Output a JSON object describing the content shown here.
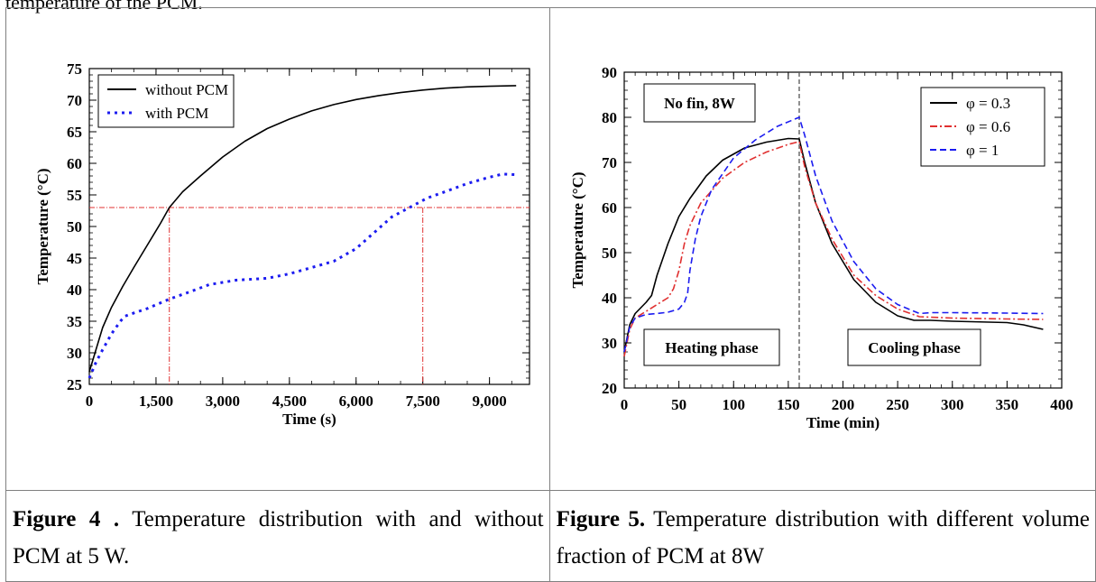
{
  "page": {
    "top_text": "temperature of the PCM."
  },
  "captions": [
    {
      "label": "Figure 4 .",
      "text": "Temperature distribution with and without PCM at 5 W."
    },
    {
      "label": "Figure 5.",
      "text": "Temperature distribution with different volume fraction of  PCM at 8W"
    }
  ],
  "chart_data": [
    {
      "type": "line",
      "xlabel": "Time (s)",
      "ylabel": "Temperature (°C)",
      "xlim": [
        0,
        9900
      ],
      "ylim": [
        25,
        75
      ],
      "xticks": [
        0,
        1500,
        3000,
        4500,
        6000,
        7500,
        9000
      ],
      "xtick_labels": [
        "0",
        "1,500",
        "3,000",
        "4,500",
        "6,000",
        "7,500",
        "9,000"
      ],
      "yticks": [
        25,
        30,
        35,
        40,
        45,
        50,
        55,
        60,
        65,
        70,
        75
      ],
      "ytick_labels": [
        "25",
        "30",
        "35",
        "40",
        "45",
        "50",
        "55",
        "60",
        "65",
        "70",
        "75"
      ],
      "legend_position": "top-left",
      "series": [
        {
          "name": "without PCM",
          "color": "#000000",
          "style": "solid",
          "x": [
            0,
            150,
            300,
            500,
            750,
            1000,
            1300,
            1600,
            1800,
            2100,
            2500,
            3000,
            3500,
            4000,
            4500,
            5000,
            5500,
            6000,
            6500,
            7000,
            7500,
            8000,
            8500,
            9000,
            9600
          ],
          "y": [
            27,
            30.5,
            34,
            37.2,
            40.5,
            43.5,
            47,
            50.5,
            53,
            55.5,
            58,
            61,
            63.5,
            65.5,
            67,
            68.3,
            69.3,
            70.1,
            70.7,
            71.2,
            71.6,
            71.9,
            72.1,
            72.2,
            72.3
          ]
        },
        {
          "name": "with PCM",
          "color": "#1c1cf0",
          "style": "dotted",
          "x": [
            0,
            150,
            300,
            500,
            700,
            800,
            1000,
            1300,
            1800,
            2200,
            2700,
            3300,
            4000,
            4500,
            5000,
            5500,
            6000,
            6400,
            6800,
            7200,
            7600,
            8000,
            8500,
            9000,
            9300,
            9600
          ],
          "y": [
            26,
            28.5,
            30.5,
            33,
            35,
            35.8,
            36.3,
            37,
            38.5,
            39.5,
            40.8,
            41.5,
            41.8,
            42.5,
            43.5,
            44.5,
            46.5,
            49,
            51.5,
            53,
            54.5,
            55.5,
            56.8,
            57.8,
            58.3,
            58.2
          ]
        }
      ],
      "reference_lines": {
        "color": "#e03030",
        "style": "dash-dot",
        "y": 53,
        "x": [
          1800,
          7500
        ]
      }
    },
    {
      "type": "line",
      "xlabel": "Time (min)",
      "ylabel": "Temperature (°C)",
      "xlim": [
        0,
        400
      ],
      "ylim": [
        20,
        90
      ],
      "xticks": [
        0,
        50,
        100,
        150,
        200,
        250,
        300,
        350,
        400
      ],
      "xtick_labels": [
        "0",
        "50",
        "100",
        "150",
        "200",
        "250",
        "300",
        "350",
        "400"
      ],
      "yticks": [
        20,
        30,
        40,
        50,
        60,
        70,
        80,
        90
      ],
      "ytick_labels": [
        "20",
        "30",
        "40",
        "50",
        "60",
        "70",
        "80",
        "90"
      ],
      "legend_position": "top-right",
      "annotations": [
        "No fin, 8W",
        "Heating phase",
        "Cooling phase"
      ],
      "phase_divider_x": 160,
      "series": [
        {
          "name": "φ = 0.3",
          "color": "#000000",
          "style": "solid",
          "x": [
            0,
            5,
            10,
            20,
            25,
            30,
            40,
            50,
            60,
            75,
            90,
            110,
            130,
            150,
            160,
            165,
            175,
            190,
            210,
            230,
            250,
            265,
            280,
            300,
            350,
            365,
            383
          ],
          "y": [
            28,
            34,
            36.5,
            39,
            40.5,
            45,
            52,
            58,
            62,
            67,
            70.5,
            73.2,
            74.5,
            75.3,
            75.2,
            70,
            61,
            52,
            44,
            39,
            36,
            35,
            35,
            34.8,
            34.5,
            34,
            33
          ]
        },
        {
          "name": "φ = 0.6",
          "color": "#e03030",
          "style": "dashdot",
          "x": [
            0,
            5,
            10,
            20,
            30,
            40,
            45,
            50,
            55,
            60,
            70,
            90,
            110,
            130,
            150,
            160,
            165,
            175,
            190,
            210,
            230,
            250,
            270,
            300,
            350,
            383
          ],
          "y": [
            27,
            33,
            35.5,
            37,
            38.5,
            40,
            42,
            46,
            52,
            56,
            61,
            66.5,
            70,
            72.3,
            74,
            74.6,
            69,
            61,
            53,
            45,
            40.5,
            37.5,
            35.8,
            35.5,
            35.3,
            35.2
          ]
        },
        {
          "name": "φ = 1",
          "color": "#1c1cf0",
          "style": "dashed",
          "x": [
            0,
            5,
            10,
            20,
            30,
            40,
            50,
            55,
            58,
            60,
            65,
            70,
            80,
            100,
            120,
            140,
            155,
            160,
            165,
            175,
            190,
            210,
            230,
            250,
            270,
            280,
            300,
            350,
            383
          ],
          "y": [
            28,
            33.5,
            35.5,
            36.3,
            36.5,
            36.8,
            37.5,
            39,
            41,
            46,
            53,
            58,
            64,
            71,
            75,
            78,
            79.5,
            80,
            76,
            67,
            57,
            48,
            42,
            38.5,
            36.5,
            36.7,
            36.7,
            36.6,
            36.5
          ]
        }
      ]
    }
  ]
}
